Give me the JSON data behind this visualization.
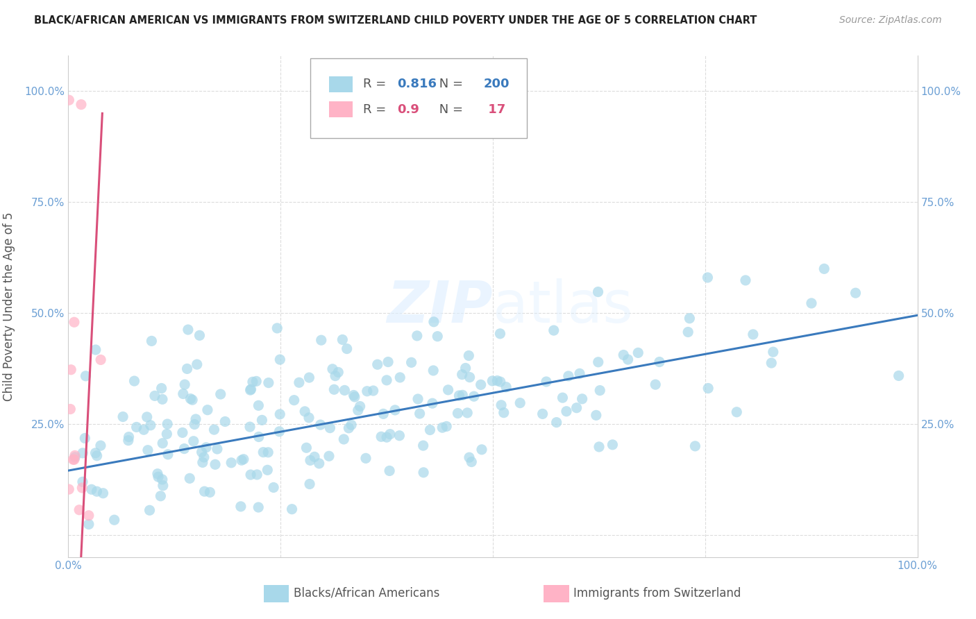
{
  "title": "BLACK/AFRICAN AMERICAN VS IMMIGRANTS FROM SWITZERLAND CHILD POVERTY UNDER THE AGE OF 5 CORRELATION CHART",
  "source": "Source: ZipAtlas.com",
  "ylabel": "Child Poverty Under the Age of 5",
  "blue_R": 0.816,
  "blue_N": 200,
  "pink_R": 0.9,
  "pink_N": 17,
  "blue_color": "#A8D8EA",
  "pink_color": "#FFB3C6",
  "blue_line_color": "#3A7ABD",
  "pink_line_color": "#D94F7A",
  "legend_label_blue": "Blacks/African Americans",
  "legend_label_pink": "Immigrants from Switzerland",
  "watermark_zip": "ZIP",
  "watermark_atlas": "atlas",
  "background_color": "#FFFFFF",
  "grid_color": "#DCDCDC",
  "title_color": "#222222",
  "axis_label_color": "#555555",
  "tick_label_color": "#6B9FD4",
  "right_tick_color": "#6B9FD4",
  "blue_scatter_seed": 42,
  "pink_scatter_seed": 7,
  "xlim": [
    0,
    1
  ],
  "ylim": [
    -0.05,
    1.08
  ]
}
